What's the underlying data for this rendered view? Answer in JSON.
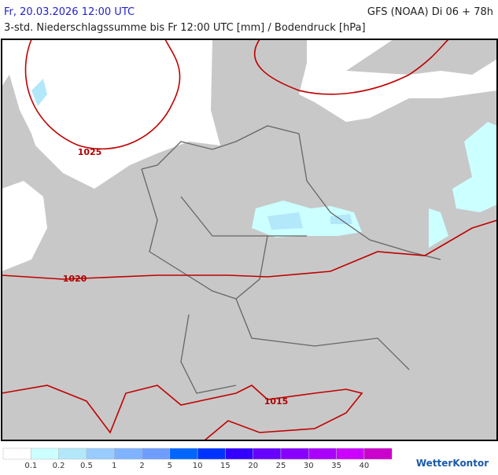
{
  "header": {
    "date": "Fr, 20.03.2026 12:00 UTC",
    "model": "GFS (NOAA) Di 06 + 78h",
    "subtitle": "3-std. Niederschlagssumme bis Fr 12:00 UTC [mm] / Bodendruck [hPa]"
  },
  "map": {
    "isobar_labels": [
      1025,
      1020,
      1015
    ]
  },
  "legend": {
    "colors": [
      "#ffffff",
      "#ccffff",
      "#b3e8fa",
      "#99ccff",
      "#80b3ff",
      "#6f9cff",
      "#0066ff",
      "#0033ff",
      "#3300ff",
      "#6600ff",
      "#8800ff",
      "#aa00ff",
      "#cc00ff",
      "#cc00cc"
    ],
    "labels": [
      0.1,
      0.2,
      0.5,
      1,
      2,
      5,
      10,
      15,
      20,
      25,
      30,
      35,
      40
    ]
  },
  "logo": "WetterKontor"
}
